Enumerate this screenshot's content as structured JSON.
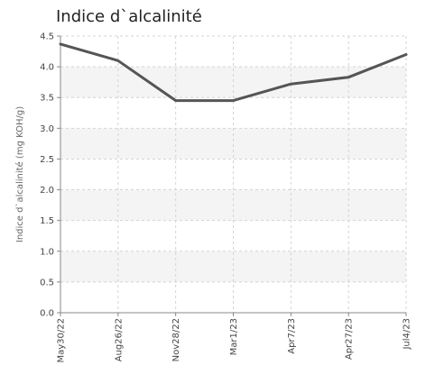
{
  "chart_data": {
    "type": "line",
    "title": "Indice d`alcalinité",
    "xlabel": "",
    "ylabel": "Indice d`alcalinité (mg KOH/g)",
    "categories": [
      "May30/22",
      "Aug26/22",
      "Nov28/22",
      "Mar1/23",
      "Apr7/23",
      "Apr27/23",
      "Jul4/23"
    ],
    "series": [
      {
        "values": [
          4.37,
          4.1,
          3.45,
          3.45,
          3.72,
          3.83,
          4.2
        ]
      }
    ],
    "ylim": [
      0,
      4.5
    ],
    "yticks": [
      "0.0",
      "0.5",
      "1.0",
      "1.5",
      "2.0",
      "2.5",
      "3.0",
      "3.5",
      "4.0",
      "4.5"
    ],
    "grid": true,
    "legend": "none",
    "colors": {
      "line": "#555555",
      "band": "#f4f4f4",
      "grid": "#d4d4d4",
      "axis": "#888888"
    }
  }
}
